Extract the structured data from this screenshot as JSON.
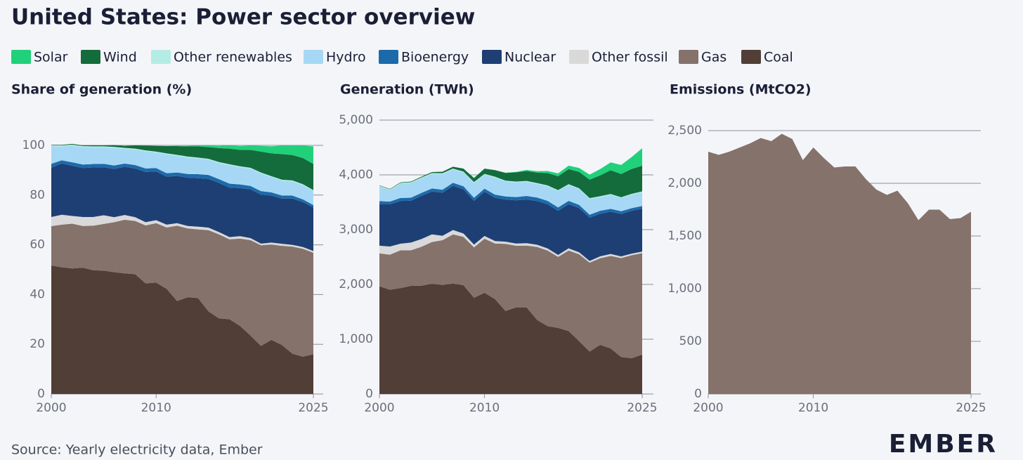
{
  "title": "United States: Power sector overview",
  "source": "Source: Yearly electricity data, Ember",
  "logo": "EMBER",
  "chart_data": [
    {
      "type": "stacked-area",
      "title": "Share of generation (%)",
      "x": [
        2000,
        2001,
        2002,
        2003,
        2004,
        2005,
        2006,
        2007,
        2008,
        2009,
        2010,
        2011,
        2012,
        2013,
        2014,
        2015,
        2016,
        2017,
        2018,
        2019,
        2020,
        2021,
        2022,
        2023,
        2024,
        2025
      ],
      "xlim": [
        2000,
        2025
      ],
      "xticks": [
        2000,
        2010,
        2025
      ],
      "ylim": [
        0,
        100
      ],
      "yticks": [
        0,
        20,
        40,
        60,
        80,
        100
      ],
      "series": [
        {
          "name": "Solar",
          "color": "#20d17a",
          "values": [
            0,
            0,
            0,
            0,
            0,
            0,
            0,
            0,
            0,
            0,
            0,
            0,
            0.1,
            0.2,
            0.4,
            0.6,
            0.9,
            1.3,
            1.5,
            1.7,
            2.3,
            2.8,
            3.4,
            4,
            5,
            7.1
          ]
        },
        {
          "name": "Wind",
          "color": "#146c3c",
          "values": [
            0.2,
            0.2,
            0.3,
            0.3,
            0.4,
            0.4,
            0.7,
            0.8,
            1.3,
            1.9,
            2.3,
            2.9,
            3.5,
            4.1,
            4.5,
            4.7,
            5.6,
            6.3,
            6.6,
            7.2,
            8.4,
            9.2,
            10.3,
            10.2,
            10.5,
            10.5
          ]
        },
        {
          "name": "Other renewables",
          "color": "#b4ebe5",
          "values": [
            0.4,
            0.4,
            0.4,
            0.4,
            0.4,
            0.4,
            0.4,
            0.4,
            0.4,
            0.4,
            0.4,
            0.4,
            0.4,
            0.4,
            0.4,
            0.4,
            0.4,
            0.4,
            0.4,
            0.4,
            0.4,
            0.4,
            0.4,
            0.4,
            0.4,
            0.4
          ]
        },
        {
          "name": "Hydro",
          "color": "#a6d8f5",
          "values": [
            7.1,
            5.6,
            6.7,
            7,
            6.7,
            6.6,
            7.1,
            5.9,
            6.2,
            6.9,
            6.2,
            7.6,
            6.7,
            6.6,
            6.3,
            6.1,
            6.5,
            7.4,
            6.9,
            6.9,
            7.1,
            6.1,
            6,
            5.7,
            5.7,
            5.6
          ]
        },
        {
          "name": "Bioenergy",
          "color": "#1d6aaa",
          "values": [
            1.6,
            1.3,
            1.4,
            1.4,
            1.4,
            1.4,
            1.4,
            1.3,
            1.4,
            1.4,
            1.4,
            1.4,
            1.4,
            1.5,
            1.6,
            1.6,
            1.5,
            1.6,
            1.5,
            1.4,
            1.4,
            1.3,
            1.2,
            1.2,
            1.1,
            1
          ]
        },
        {
          "name": "Nuclear",
          "color": "#1e3f73",
          "values": [
            19.8,
            20.6,
            20.2,
            19.7,
            19.9,
            19.3,
            19.4,
            19.4,
            19.6,
            20.2,
            19.6,
            19.3,
            19,
            19.4,
            19.5,
            19.6,
            19.8,
            19.9,
            19.3,
            19.6,
            19.7,
            18.9,
            18.2,
            18.6,
            18.1,
            17.5
          ]
        },
        {
          "name": "Other fossil",
          "color": "#d9d9d9",
          "values": [
            3.7,
            4,
            3.1,
            3.6,
            3.5,
            3.5,
            2,
            1.9,
            1.5,
            1.3,
            1.2,
            1.1,
            1,
            1,
            1.1,
            1,
            0.9,
            0.9,
            1,
            0.8,
            0.7,
            0.8,
            0.8,
            0.7,
            0.7,
            0.7
          ]
        },
        {
          "name": "Gas",
          "color": "#85726b",
          "values": [
            15.8,
            17.1,
            18,
            16.8,
            17.9,
            18.8,
            20.1,
            21.6,
            21.4,
            23.3,
            23.9,
            24.7,
            30.3,
            27.7,
            27.6,
            32.7,
            33.8,
            32.1,
            35.1,
            38.4,
            40.5,
            38.3,
            39.9,
            43.1,
            43.4,
            40.8
          ]
        },
        {
          "name": "Coal",
          "color": "#513e36",
          "values": [
            51.7,
            51,
            50.5,
            50.8,
            49.8,
            49.6,
            49,
            48.5,
            48.2,
            44.5,
            44.8,
            42.3,
            37.4,
            38.9,
            38.6,
            33.2,
            30.4,
            30.1,
            27.4,
            23.5,
            19.3,
            21.8,
            19.7,
            16.2,
            15,
            16
          ]
        }
      ]
    },
    {
      "type": "stacked-area",
      "title": "Generation (TWh)",
      "x": [
        2000,
        2001,
        2002,
        2003,
        2004,
        2005,
        2006,
        2007,
        2008,
        2009,
        2010,
        2011,
        2012,
        2013,
        2014,
        2015,
        2016,
        2017,
        2018,
        2019,
        2020,
        2021,
        2022,
        2023,
        2024,
        2025
      ],
      "xlim": [
        2000,
        2025
      ],
      "xticks": [
        2000,
        2010,
        2025
      ],
      "ylim": [
        0,
        5000
      ],
      "yticks": [
        0,
        {
          "value": 1000,
          "label": "1,000"
        },
        {
          "value": 2000,
          "label": "2,000"
        },
        {
          "value": 3000,
          "label": "3,000"
        },
        {
          "value": 4000,
          "label": "4,000"
        },
        {
          "value": 5000,
          "label": "5,000"
        }
      ],
      "series": [
        {
          "name": "Solar",
          "color": "#20d17a",
          "values": [
            0.5,
            0.5,
            0.6,
            0.5,
            0.6,
            0.6,
            0.5,
            0.6,
            0.9,
            0.9,
            1.2,
            1.8,
            4.3,
            9,
            18,
            25,
            36,
            53,
            63,
            72,
            91,
            115,
            143,
            165,
            219,
            320
          ]
        },
        {
          "name": "Wind",
          "color": "#146c3c",
          "values": [
            6,
            7,
            10,
            11,
            14,
            18,
            27,
            34,
            55,
            74,
            95,
            120,
            141,
            168,
            182,
            191,
            227,
            254,
            275,
            300,
            338,
            380,
            435,
            425,
            453,
            470
          ]
        },
        {
          "name": "Other renewables",
          "color": "#b4ebe5",
          "values": [
            14,
            14,
            14,
            14,
            15,
            15,
            15,
            15,
            15,
            15,
            15,
            16,
            16,
            16,
            16,
            16,
            16,
            16,
            16,
            16,
            17,
            16,
            16,
            16,
            16,
            16
          ]
        },
        {
          "name": "Hydro",
          "color": "#a6d8f5",
          "values": [
            270,
            210,
            260,
            270,
            265,
            267,
            287,
            245,
            253,
            272,
            255,
            312,
            272,
            267,
            258,
            249,
            265,
            299,
            288,
            287,
            285,
            251,
            254,
            239,
            245,
            250
          ]
        },
        {
          "name": "Bioenergy",
          "color": "#1d6aaa",
          "values": [
            60,
            50,
            55,
            55,
            55,
            55,
            55,
            56,
            56,
            55,
            57,
            57,
            57,
            60,
            64,
            64,
            63,
            63,
            61,
            57,
            55,
            54,
            52,
            50,
            48,
            47
          ]
        },
        {
          "name": "Nuclear",
          "color": "#1e3f73",
          "values": [
            754,
            769,
            780,
            764,
            789,
            782,
            787,
            806,
            806,
            799,
            807,
            790,
            769,
            789,
            797,
            797,
            806,
            805,
            807,
            809,
            790,
            778,
            772,
            775,
            782,
            785
          ]
        },
        {
          "name": "Other fossil",
          "color": "#d9d9d9",
          "values": [
            140,
            150,
            120,
            140,
            140,
            140,
            80,
            80,
            60,
            50,
            50,
            45,
            40,
            40,
            45,
            40,
            38,
            35,
            40,
            35,
            30,
            35,
            35,
            30,
            30,
            30
          ]
        },
        {
          "name": "Gas",
          "color": "#85726b",
          "values": [
            601,
            639,
            691,
            650,
            710,
            761,
            816,
            897,
            883,
            921,
            988,
            1014,
            1226,
            1125,
            1127,
            1333,
            1380,
            1297,
            1469,
            1586,
            1624,
            1579,
            1689,
            1806,
            1880,
            1850
          ]
        },
        {
          "name": "Coal",
          "color": "#513e36",
          "values": [
            1966,
            1904,
            1933,
            1974,
            1978,
            2013,
            1991,
            2016,
            1986,
            1756,
            1847,
            1733,
            1514,
            1581,
            1582,
            1352,
            1239,
            1206,
            1149,
            965,
            774,
            898,
            832,
            675,
            653,
            720
          ]
        }
      ]
    },
    {
      "type": "area",
      "title": "Emissions (MtCO2)",
      "x": [
        2000,
        2001,
        2002,
        2003,
        2004,
        2005,
        2006,
        2007,
        2008,
        2009,
        2010,
        2011,
        2012,
        2013,
        2014,
        2015,
        2016,
        2017,
        2018,
        2019,
        2020,
        2021,
        2022,
        2023,
        2024,
        2025
      ],
      "xlim": [
        2000,
        2025
      ],
      "xticks": [
        2000,
        2010,
        2025
      ],
      "ylim": [
        0,
        2500
      ],
      "yticks": [
        0,
        500,
        {
          "value": 1000,
          "label": "1,000"
        },
        {
          "value": 1500,
          "label": "1,500"
        },
        {
          "value": 2000,
          "label": "2,000"
        },
        {
          "value": 2500,
          "label": "2,500"
        }
      ],
      "color": "#85726b",
      "values": [
        2300,
        2270,
        2300,
        2340,
        2380,
        2430,
        2400,
        2470,
        2420,
        2220,
        2340,
        2240,
        2150,
        2160,
        2160,
        2040,
        1940,
        1890,
        1930,
        1810,
        1650,
        1750,
        1750,
        1660,
        1670,
        1730
      ]
    }
  ]
}
